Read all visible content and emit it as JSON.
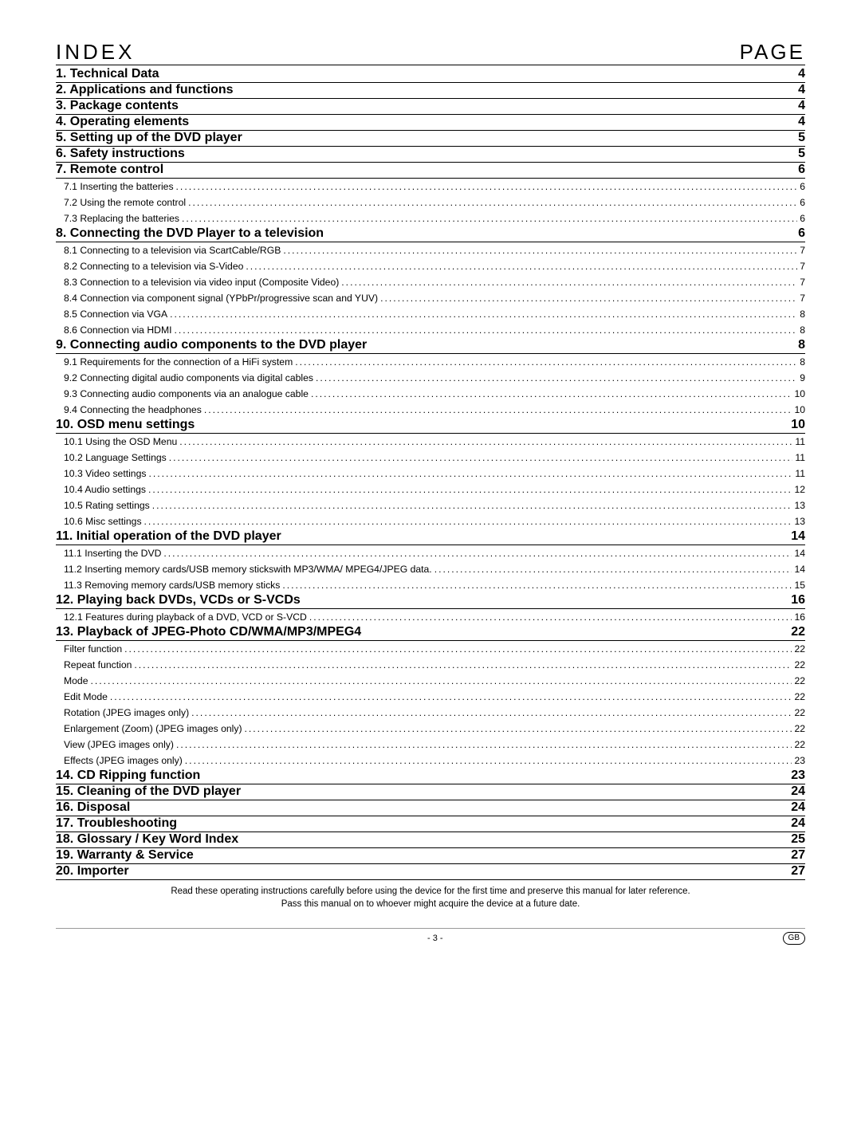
{
  "header": {
    "left": "INDEX",
    "right": "PAGE"
  },
  "sections": [
    {
      "title": "1. Technical Data",
      "page": "4",
      "subs": []
    },
    {
      "title": "2. Applications and functions",
      "page": "4",
      "subs": []
    },
    {
      "title": "3. Package contents",
      "page": "4",
      "subs": []
    },
    {
      "title": "4. Operating elements",
      "page": "4",
      "subs": []
    },
    {
      "title": "5. Setting up of the DVD player",
      "page": "5",
      "subs": []
    },
    {
      "title": "6. Safety instructions",
      "page": "5",
      "subs": []
    },
    {
      "title": "7. Remote control",
      "page": "6",
      "subs": [
        {
          "label": "7.1 Inserting the batteries",
          "pg": "6"
        },
        {
          "label": "7.2 Using the remote control",
          "pg": "6"
        },
        {
          "label": "7.3 Replacing the batteries",
          "pg": "6"
        }
      ]
    },
    {
      "title": "8. Connecting the DVD Player to a television",
      "page": "6",
      "subs": [
        {
          "label": "8.1 Connecting to a television via ScartCable/RGB",
          "pg": "7"
        },
        {
          "label": "8.2 Connecting to a television via S-Video",
          "pg": "7"
        },
        {
          "label": "8.3 Connection to a television via video input (Composite Video)",
          "pg": "7"
        },
        {
          "label": "8.4 Connection via component signal (YPbPr/progressive scan and YUV)",
          "pg": "7"
        },
        {
          "label": "8.5 Connection via VGA",
          "pg": "8"
        },
        {
          "label": "8.6 Connection via HDMI",
          "pg": "8"
        }
      ]
    },
    {
      "title": "9. Connecting audio components to the DVD player",
      "page": "8",
      "subs": [
        {
          "label": "9.1 Requirements for the connection of a HiFi system",
          "pg": "8"
        },
        {
          "label": "9.2 Connecting digital audio components via digital cables",
          "pg": "9"
        },
        {
          "label": "9.3 Connecting audio components via an analogue cable",
          "pg": "10"
        },
        {
          "label": "9.4 Connecting the headphones",
          "pg": "10"
        }
      ]
    },
    {
      "title": "10. OSD menu settings",
      "page": "10",
      "subs": [
        {
          "label": "10.1 Using the OSD Menu",
          "pg": "11"
        },
        {
          "label": "10.2 Language Settings",
          "pg": "11"
        },
        {
          "label": "10.3 Video settings",
          "pg": "11"
        },
        {
          "label": "10.4 Audio settings",
          "pg": "12"
        },
        {
          "label": "10.5 Rating settings",
          "pg": "13"
        },
        {
          "label": "10.6 Misc settings",
          "pg": "13"
        }
      ]
    },
    {
      "title": "11. Initial operation of the DVD player",
      "page": "14",
      "subs": [
        {
          "label": "11.1 Inserting the DVD",
          "pg": "14"
        },
        {
          "label": "11.2 Inserting memory cards/USB memory stickswith MP3/WMA/ MPEG4/JPEG data.",
          "pg": "14"
        },
        {
          "label": "11.3 Removing memory cards/USB memory sticks",
          "pg": "15"
        }
      ]
    },
    {
      "title": "12. Playing back DVDs, VCDs or S-VCDs",
      "page": "16",
      "subs": [
        {
          "label": "12.1 Features during playback of a DVD, VCD or S-VCD",
          "pg": "16"
        }
      ]
    },
    {
      "title": "13. Playback of JPEG-Photo CD/WMA/MP3/MPEG4",
      "page": "22",
      "subs": [
        {
          "label": "Filter function",
          "pg": "22"
        },
        {
          "label": "Repeat function",
          "pg": "22"
        },
        {
          "label": "Mode",
          "pg": "22"
        },
        {
          "label": "Edit Mode",
          "pg": "22"
        },
        {
          "label": "Rotation (JPEG images only)",
          "pg": "22"
        },
        {
          "label": "Enlargement (Zoom) (JPEG images only)",
          "pg": "22"
        },
        {
          "label": "View (JPEG images only)",
          "pg": "22"
        },
        {
          "label": "Effects (JPEG images only)",
          "pg": "23"
        }
      ]
    },
    {
      "title": "14. CD Ripping function",
      "page": "23",
      "subs": []
    },
    {
      "title": "15. Cleaning of the DVD player",
      "page": "24",
      "subs": []
    },
    {
      "title": "16. Disposal",
      "page": "24",
      "subs": []
    },
    {
      "title": "17. Troubleshooting",
      "page": "24",
      "subs": []
    },
    {
      "title": "18. Glossary / Key Word Index",
      "page": "25",
      "subs": []
    },
    {
      "title": "19. Warranty & Service",
      "page": "27",
      "subs": []
    },
    {
      "title": "20. Importer",
      "page": "27",
      "subs": []
    }
  ],
  "footnote": {
    "line1": "Read these operating instructions carefully before using the device for the first time and preserve this manual for later reference.",
    "line2": "Pass this manual on to whoever might acquire the device at a future date."
  },
  "footer": {
    "center": "- 3 -",
    "right": "GB"
  }
}
